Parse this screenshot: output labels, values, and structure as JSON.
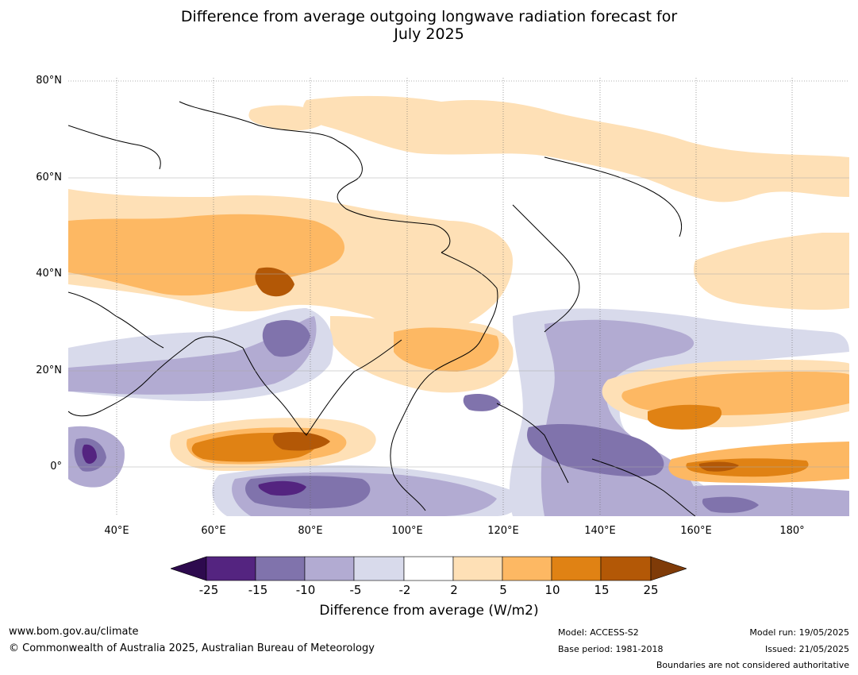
{
  "title": {
    "line1": "Difference from average outgoing longwave radiation forecast for",
    "line2": "July 2025"
  },
  "map": {
    "lat_labels": [
      "80°N",
      "60°N",
      "40°N",
      "20°N",
      "0°"
    ],
    "lon_labels": [
      "40°E",
      "60°E",
      "80°E",
      "100°E",
      "120°E",
      "140°E",
      "160°E",
      "180°"
    ]
  },
  "colorbar": {
    "ticks": [
      "-25",
      "-15",
      "-10",
      "-5",
      "-2",
      "2",
      "5",
      "10",
      "15",
      "25"
    ],
    "colors": {
      "under": "#2d0a4e",
      "c1": "#542480",
      "c2": "#8073ac",
      "c3": "#b2abd2",
      "c4": "#d8daeb",
      "c5": "#ffffff",
      "c6": "#fee0b6",
      "c7": "#fdb863",
      "c8": "#e08214",
      "c9": "#b35806",
      "over": "#7f3b08"
    },
    "label": "Difference from average (W/m2)"
  },
  "footer": {
    "url": "www.bom.gov.au/climate",
    "copyright": "© Commonwealth of Australia 2025, Australian Bureau of Meteorology",
    "model": "Model: ACCESS-S2",
    "base_period": "Base period: 1981-2018",
    "model_run": "Model run: 19/05/2025",
    "issued": "Issued: 21/05/2025",
    "disclaimer": "Boundaries are not considered authoritative"
  }
}
